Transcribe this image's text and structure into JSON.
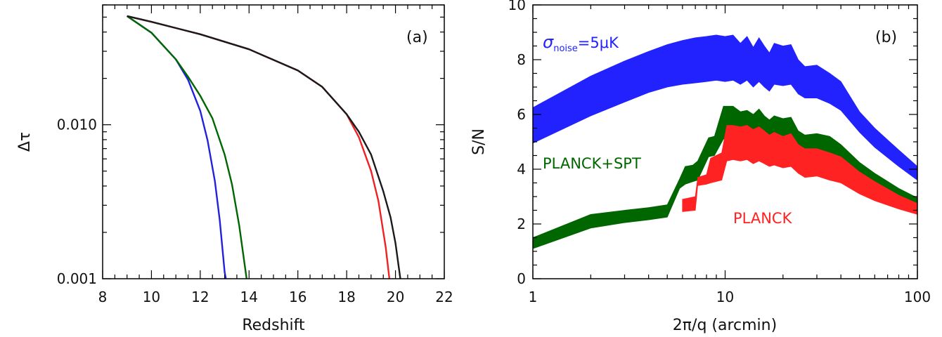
{
  "chart_data": [
    {
      "type": "line",
      "panel_label": "(a)",
      "xlabel": "Redshift",
      "ylabel": "Δτ",
      "xlim": [
        8,
        22
      ],
      "ylim": [
        0.001,
        0.06
      ],
      "yscale": "log",
      "x_ticks": [
        8,
        10,
        12,
        14,
        16,
        18,
        20,
        22
      ],
      "x_tick_labels": [
        "8",
        "10",
        "12",
        "14",
        "16",
        "18",
        "20",
        "22"
      ],
      "y_ticks": [
        0.001,
        0.01
      ],
      "y_tick_labels": [
        "0.001",
        "0.010"
      ],
      "grid": false,
      "series": [
        {
          "color": "#2222dd",
          "x": [
            9.0,
            10.0,
            11.0,
            11.5,
            12.0,
            12.3,
            12.6,
            12.8,
            13.0,
            13.05
          ],
          "y": [
            0.0508,
            0.0396,
            0.0266,
            0.0196,
            0.0123,
            0.0079,
            0.0043,
            0.0024,
            0.0011,
            0.001
          ]
        },
        {
          "color": "#006600",
          "x": [
            9.0,
            10.0,
            11.0,
            11.5,
            12.0,
            12.5,
            13.0,
            13.3,
            13.6,
            13.9
          ],
          "y": [
            0.0508,
            0.0396,
            0.0266,
            0.0205,
            0.0154,
            0.011,
            0.0064,
            0.0041,
            0.0022,
            0.001
          ]
        },
        {
          "color": "#ee2222",
          "x": [
            9.0,
            10.0,
            12.0,
            14.0,
            16.0,
            17.0,
            18.0,
            18.5,
            19.0,
            19.3,
            19.6,
            19.75
          ],
          "y": [
            0.0508,
            0.0466,
            0.0387,
            0.0309,
            0.0225,
            0.0176,
            0.0117,
            0.0083,
            0.005,
            0.0032,
            0.0016,
            0.001
          ]
        },
        {
          "color": "#1a1a1a",
          "x": [
            9.0,
            10.0,
            12.0,
            14.0,
            16.0,
            17.0,
            18.0,
            18.5,
            19.0,
            19.5,
            19.8,
            20.0,
            20.2
          ],
          "y": [
            0.0508,
            0.0466,
            0.0387,
            0.0309,
            0.0225,
            0.0176,
            0.0117,
            0.009,
            0.0064,
            0.0037,
            0.0025,
            0.0017,
            0.001
          ]
        }
      ]
    },
    {
      "type": "area",
      "panel_label": "(b)",
      "xlabel": "2π/q (arcmin)",
      "ylabel": "S/N",
      "xlim": [
        1,
        100
      ],
      "xscale": "log",
      "ylim": [
        0,
        10
      ],
      "x_ticks": [
        1,
        10,
        100
      ],
      "x_tick_labels": [
        "1",
        "10",
        "100"
      ],
      "y_ticks": [
        0,
        2,
        4,
        6,
        8,
        10
      ],
      "y_tick_labels": [
        "0",
        "2",
        "4",
        "6",
        "8",
        "10"
      ],
      "grid": false,
      "annotations": [
        {
          "text_symbol": "σ",
          "text_sub": "noise",
          "text_rest": "=5μK",
          "color": "#2222ff"
        },
        {
          "text": "PLANCK+SPT",
          "color": "#006600"
        },
        {
          "text": "PLANCK",
          "color": "#ff2222"
        }
      ],
      "series": [
        {
          "color": "#2222ff",
          "x": [
            1,
            2,
            3,
            4,
            5,
            6,
            7,
            8,
            9,
            10,
            11,
            12,
            13,
            14,
            15,
            16,
            17,
            18,
            20,
            22,
            24,
            26,
            30,
            35,
            40,
            50,
            60,
            80,
            100
          ],
          "upper": [
            6.25,
            7.4,
            7.95,
            8.3,
            8.55,
            8.7,
            8.8,
            8.85,
            8.9,
            8.85,
            8.9,
            8.6,
            8.85,
            8.45,
            8.8,
            8.5,
            8.25,
            8.6,
            8.5,
            8.55,
            8.0,
            7.75,
            7.8,
            7.5,
            7.2,
            6.1,
            5.5,
            4.7,
            4.1
          ],
          "lower": [
            4.95,
            5.95,
            6.45,
            6.8,
            7.0,
            7.1,
            7.15,
            7.2,
            7.25,
            7.2,
            7.25,
            7.1,
            7.25,
            7.0,
            7.2,
            7.0,
            6.85,
            7.1,
            7.05,
            7.1,
            6.75,
            6.6,
            6.6,
            6.4,
            6.15,
            5.35,
            4.8,
            4.1,
            3.6
          ]
        },
        {
          "color": "#006600",
          "x": [
            1,
            2,
            3,
            4,
            5,
            5.8,
            6.2,
            6.8,
            7.2,
            8.2,
            8.8,
            9.8,
            10.2,
            11,
            12,
            13,
            14,
            15,
            16,
            17,
            18,
            20,
            22,
            24,
            26,
            30,
            35,
            40,
            50,
            60,
            80,
            100
          ],
          "upper": [
            1.5,
            2.35,
            2.5,
            2.6,
            2.7,
            3.65,
            4.1,
            4.15,
            4.3,
            5.15,
            5.2,
            6.3,
            6.3,
            6.3,
            6.1,
            6.15,
            6.0,
            6.2,
            5.95,
            5.8,
            5.95,
            5.85,
            5.9,
            5.4,
            5.25,
            5.3,
            5.2,
            4.9,
            4.25,
            3.85,
            3.3,
            2.95
          ],
          "lower": [
            1.1,
            1.85,
            2.05,
            2.15,
            2.25,
            3.3,
            3.45,
            3.55,
            3.6,
            4.45,
            4.5,
            5.1,
            5.15,
            5.15,
            5.05,
            5.1,
            5.0,
            5.1,
            4.95,
            4.85,
            4.95,
            4.85,
            4.9,
            4.55,
            4.4,
            4.45,
            4.35,
            4.1,
            3.6,
            3.25,
            2.8,
            2.55
          ]
        },
        {
          "color": "#ff2222",
          "x": [
            6.0,
            7.0,
            7.2,
            8.0,
            8.4,
            9.6,
            10.2,
            11,
            12,
            13,
            14,
            15,
            16,
            17,
            18,
            20,
            22,
            24,
            26,
            30,
            35,
            40,
            50,
            60,
            80,
            100
          ],
          "upper": [
            2.9,
            3.0,
            3.7,
            3.8,
            4.4,
            4.6,
            5.6,
            5.6,
            5.55,
            5.6,
            5.45,
            5.55,
            5.4,
            5.25,
            5.35,
            5.2,
            5.3,
            4.9,
            4.75,
            4.75,
            4.6,
            4.45,
            3.9,
            3.55,
            3.05,
            2.75
          ],
          "lower": [
            2.45,
            2.5,
            3.4,
            3.45,
            3.5,
            3.6,
            4.3,
            4.35,
            4.3,
            4.35,
            4.2,
            4.3,
            4.2,
            4.1,
            4.15,
            4.05,
            4.1,
            3.85,
            3.7,
            3.75,
            3.6,
            3.5,
            3.1,
            2.85,
            2.55,
            2.35
          ]
        }
      ]
    }
  ]
}
